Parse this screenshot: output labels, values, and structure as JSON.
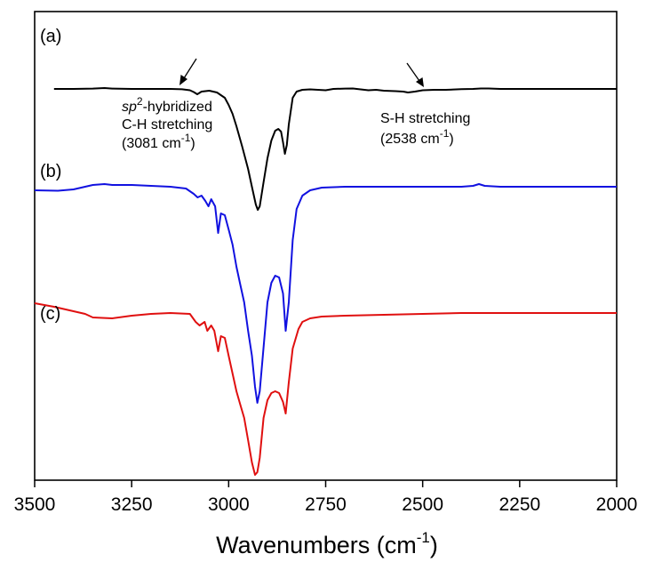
{
  "chart_data": {
    "type": "line",
    "title": "",
    "xlabel": "Wavenumbers (cm",
    "xlabel_sup": "-1",
    "xlabel_close": ")",
    "ylabel": "",
    "xlim": [
      3500,
      2000
    ],
    "x_reversed": true,
    "y_ticks_shown": false,
    "grid": false,
    "legend": "none",
    "xticks": [
      "3500",
      "3250",
      "3000",
      "2750",
      "2500",
      "2250",
      "2000"
    ],
    "xtick_values": [
      3500,
      3250,
      3000,
      2750,
      2500,
      2250,
      2000
    ],
    "series": [
      {
        "name": "(a)",
        "color": "#000000",
        "points": [
          [
            3450,
            100
          ],
          [
            3400,
            100
          ],
          [
            3350,
            99.6
          ],
          [
            3320,
            99
          ],
          [
            3300,
            99.6
          ],
          [
            3250,
            100
          ],
          [
            3200,
            100
          ],
          [
            3150,
            100
          ],
          [
            3120,
            100.4
          ],
          [
            3100,
            101.5
          ],
          [
            3090,
            103.5
          ],
          [
            3081,
            106
          ],
          [
            3070,
            103
          ],
          [
            3050,
            102
          ],
          [
            3030,
            104
          ],
          [
            3010,
            110
          ],
          [
            3000,
            118
          ],
          [
            2990,
            128
          ],
          [
            2980,
            142
          ],
          [
            2965,
            165
          ],
          [
            2950,
            190
          ],
          [
            2940,
            210
          ],
          [
            2930,
            230
          ],
          [
            2925,
            236
          ],
          [
            2920,
            232
          ],
          [
            2910,
            205
          ],
          [
            2900,
            178
          ],
          [
            2890,
            158
          ],
          [
            2880,
            147
          ],
          [
            2872,
            145
          ],
          [
            2865,
            148
          ],
          [
            2860,
            160
          ],
          [
            2855,
            173
          ],
          [
            2850,
            163
          ],
          [
            2845,
            140
          ],
          [
            2835,
            110
          ],
          [
            2825,
            103
          ],
          [
            2810,
            101
          ],
          [
            2790,
            100.5
          ],
          [
            2750,
            101.5
          ],
          [
            2730,
            100
          ],
          [
            2700,
            99.6
          ],
          [
            2680,
            99.5
          ],
          [
            2660,
            100.5
          ],
          [
            2640,
            101.5
          ],
          [
            2620,
            101
          ],
          [
            2600,
            102
          ],
          [
            2570,
            102.5
          ],
          [
            2550,
            103
          ],
          [
            2538,
            104
          ],
          [
            2520,
            103
          ],
          [
            2500,
            101.5
          ],
          [
            2470,
            101
          ],
          [
            2440,
            101
          ],
          [
            2400,
            100.3
          ],
          [
            2370,
            100
          ],
          [
            2350,
            99.5
          ],
          [
            2330,
            99.5
          ],
          [
            2300,
            100
          ],
          [
            2250,
            100
          ],
          [
            2200,
            100
          ],
          [
            2100,
            100
          ],
          [
            2000,
            100
          ]
        ]
      },
      {
        "name": "(b)",
        "color": "#1111e0",
        "points": [
          [
            3500,
            214
          ],
          [
            3440,
            214.5
          ],
          [
            3400,
            213
          ],
          [
            3350,
            208
          ],
          [
            3320,
            207
          ],
          [
            3300,
            208
          ],
          [
            3250,
            208
          ],
          [
            3200,
            209
          ],
          [
            3150,
            210
          ],
          [
            3110,
            212
          ],
          [
            3090,
            218
          ],
          [
            3080,
            222
          ],
          [
            3070,
            220
          ],
          [
            3060,
            226
          ],
          [
            3052,
            232
          ],
          [
            3045,
            224
          ],
          [
            3035,
            232
          ],
          [
            3027,
            262
          ],
          [
            3020,
            240
          ],
          [
            3010,
            242
          ],
          [
            3000,
            258
          ],
          [
            2990,
            275
          ],
          [
            2980,
            300
          ],
          [
            2970,
            320
          ],
          [
            2960,
            340
          ],
          [
            2950,
            372
          ],
          [
            2940,
            400
          ],
          [
            2932,
            435
          ],
          [
            2926,
            453
          ],
          [
            2920,
            440
          ],
          [
            2912,
            400
          ],
          [
            2900,
            340
          ],
          [
            2890,
            318
          ],
          [
            2880,
            310
          ],
          [
            2870,
            312
          ],
          [
            2860,
            330
          ],
          [
            2853,
            372
          ],
          [
            2845,
            340
          ],
          [
            2835,
            270
          ],
          [
            2825,
            235
          ],
          [
            2810,
            220
          ],
          [
            2790,
            214
          ],
          [
            2760,
            211
          ],
          [
            2700,
            210
          ],
          [
            2650,
            210
          ],
          [
            2600,
            210
          ],
          [
            2550,
            210
          ],
          [
            2500,
            210
          ],
          [
            2400,
            210
          ],
          [
            2370,
            209
          ],
          [
            2355,
            207
          ],
          [
            2340,
            209
          ],
          [
            2300,
            210
          ],
          [
            2250,
            210
          ],
          [
            2200,
            210
          ],
          [
            2100,
            210
          ],
          [
            2000,
            210
          ]
        ]
      },
      {
        "name": "(c)",
        "color": "#e01010",
        "points": [
          [
            3500,
            341
          ],
          [
            3450,
            345
          ],
          [
            3400,
            350
          ],
          [
            3370,
            353
          ],
          [
            3350,
            357
          ],
          [
            3300,
            358
          ],
          [
            3250,
            355
          ],
          [
            3200,
            353
          ],
          [
            3150,
            352
          ],
          [
            3100,
            353
          ],
          [
            3085,
            362
          ],
          [
            3075,
            366
          ],
          [
            3062,
            362
          ],
          [
            3055,
            372
          ],
          [
            3045,
            366
          ],
          [
            3037,
            372
          ],
          [
            3027,
            395
          ],
          [
            3020,
            378
          ],
          [
            3010,
            380
          ],
          [
            3000,
            400
          ],
          [
            2990,
            420
          ],
          [
            2980,
            440
          ],
          [
            2970,
            455
          ],
          [
            2960,
            470
          ],
          [
            2950,
            495
          ],
          [
            2940,
            520
          ],
          [
            2932,
            534
          ],
          [
            2926,
            531
          ],
          [
            2920,
            515
          ],
          [
            2910,
            470
          ],
          [
            2900,
            450
          ],
          [
            2890,
            442
          ],
          [
            2880,
            440
          ],
          [
            2870,
            442
          ],
          [
            2860,
            452
          ],
          [
            2853,
            465
          ],
          [
            2845,
            430
          ],
          [
            2835,
            392
          ],
          [
            2820,
            370
          ],
          [
            2810,
            362
          ],
          [
            2790,
            358
          ],
          [
            2760,
            356
          ],
          [
            2700,
            355
          ],
          [
            2600,
            354
          ],
          [
            2500,
            353
          ],
          [
            2400,
            352
          ],
          [
            2300,
            352
          ],
          [
            2200,
            352
          ],
          [
            2100,
            352
          ],
          [
            2000,
            352
          ]
        ]
      }
    ],
    "annotations": [
      {
        "lines": [
          {
            "italic": "sp",
            "sup": "2",
            "text": "-hybridized"
          },
          {
            "text": "C-H stretching"
          },
          {
            "text": "(3081 cm",
            "sup": "-1",
            "tail": ")"
          }
        ],
        "points_to": 3081
      },
      {
        "lines": [
          {
            "text": "S-H stretching"
          },
          {
            "text": "(2538 cm",
            "sup": "-1",
            "tail": ")"
          }
        ],
        "points_to": 2538
      }
    ]
  }
}
